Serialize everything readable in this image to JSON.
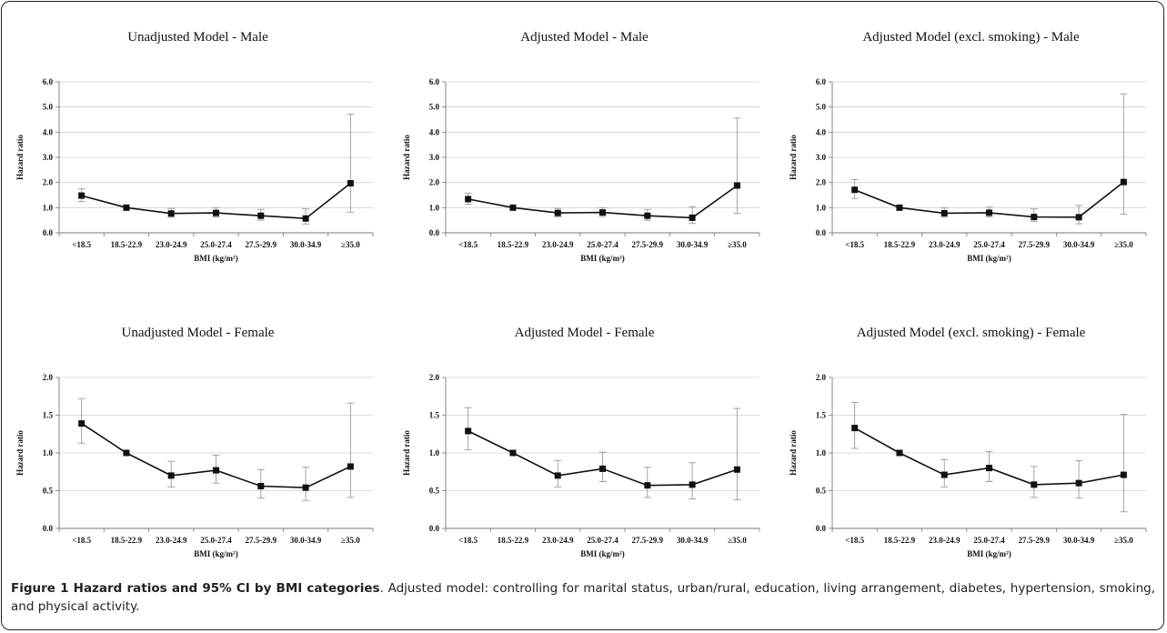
{
  "chart_data": [
    {
      "type": "line",
      "title": "Unadjusted Model - Male",
      "xlabel": "BMI (kg/m²)",
      "ylabel": "Hazard ratio",
      "categories": [
        "<18.5",
        "18.5-22.9",
        "23.0-24.9",
        "25.0-27.4",
        "27.5-29.9",
        "30.0-34.9",
        "≥35.0"
      ],
      "yticks": [
        "0.0",
        "1.0",
        "2.0",
        "3.0",
        "4.0",
        "5.0",
        "6.0"
      ],
      "ylim": [
        0,
        6
      ],
      "grid": true,
      "series": [
        {
          "values": [
            1.48,
            1.0,
            0.77,
            0.79,
            0.68,
            0.57,
            1.97
          ],
          "ci_low": [
            1.25,
            1.0,
            0.62,
            0.63,
            0.5,
            0.35,
            0.82
          ],
          "ci_high": [
            1.75,
            1.0,
            0.97,
            0.99,
            0.93,
            0.95,
            4.72
          ]
        }
      ]
    },
    {
      "type": "line",
      "title": "Adjusted Model - Male",
      "xlabel": "BMI (kg/m²)",
      "ylabel": "Hazard ratio",
      "categories": [
        "<18.5",
        "18.5-22.9",
        "23.0-24.9",
        "25.0-27.4",
        "27.5-29.9",
        "30.0-34.9",
        "≥35.0"
      ],
      "yticks": [
        "0.0",
        "1.0",
        "2.0",
        "3.0",
        "4.0",
        "5.0",
        "6.0"
      ],
      "ylim": [
        0,
        6
      ],
      "grid": true,
      "series": [
        {
          "values": [
            1.34,
            1.0,
            0.79,
            0.81,
            0.68,
            0.6,
            1.88
          ],
          "ci_low": [
            1.13,
            1.0,
            0.64,
            0.65,
            0.5,
            0.37,
            0.78
          ],
          "ci_high": [
            1.58,
            1.0,
            0.97,
            0.99,
            0.93,
            1.04,
            4.56
          ]
        }
      ]
    },
    {
      "type": "line",
      "title": "Adjusted Model (excl. smoking) - Male",
      "xlabel": "BMI (kg/m²)",
      "ylabel": "Hazard ratio",
      "categories": [
        "<18.5",
        "18.5-22.9",
        "23.0-24.9",
        "25.0-27.4",
        "27.5-29.9",
        "30.0-34.9",
        "≥35.0"
      ],
      "yticks": [
        "0.0",
        "1.0",
        "2.0",
        "3.0",
        "4.0",
        "5.0",
        "6.0"
      ],
      "ylim": [
        0,
        6
      ],
      "grid": true,
      "series": [
        {
          "values": [
            1.71,
            1.0,
            0.78,
            0.8,
            0.63,
            0.62,
            2.02
          ],
          "ci_low": [
            1.37,
            1.0,
            0.62,
            0.63,
            0.46,
            0.36,
            0.74
          ],
          "ci_high": [
            2.12,
            1.0,
            0.99,
            1.02,
            0.95,
            1.09,
            5.52
          ]
        }
      ]
    },
    {
      "type": "line",
      "title": "Unadjusted Model - Female",
      "xlabel": "BMI (kg/m²)",
      "ylabel": "Hazard ratio",
      "categories": [
        "<18.5",
        "18.5-22.9",
        "23.0-24.9",
        "25.0-27.4",
        "27.5-29.9",
        "30.0-34.9",
        "≥35.0"
      ],
      "yticks": [
        "0.0",
        "0.5",
        "1.0",
        "1.5",
        "2.0"
      ],
      "ylim": [
        0,
        2
      ],
      "grid": true,
      "series": [
        {
          "values": [
            1.39,
            1.0,
            0.7,
            0.77,
            0.56,
            0.54,
            0.82
          ],
          "ci_low": [
            1.13,
            1.0,
            0.55,
            0.6,
            0.4,
            0.37,
            0.41
          ],
          "ci_high": [
            1.72,
            1.0,
            0.89,
            0.97,
            0.78,
            0.81,
            1.66
          ]
        }
      ]
    },
    {
      "type": "line",
      "title": "Adjusted Model - Female",
      "xlabel": "BMI (kg/m²)",
      "ylabel": "Hazard ratio",
      "categories": [
        "<18.5",
        "18.5-22.9",
        "23.0-24.9",
        "25.0-27.4",
        "27.5-29.9",
        "30.0-34.9",
        "≥35.0"
      ],
      "yticks": [
        "0.0",
        "0.5",
        "1.0",
        "1.5",
        "2.0"
      ],
      "ylim": [
        0,
        2
      ],
      "grid": true,
      "series": [
        {
          "values": [
            1.29,
            1.0,
            0.7,
            0.79,
            0.57,
            0.58,
            0.78
          ],
          "ci_low": [
            1.04,
            1.0,
            0.55,
            0.62,
            0.41,
            0.39,
            0.38
          ],
          "ci_high": [
            1.6,
            1.0,
            0.9,
            1.01,
            0.81,
            0.87,
            1.59
          ]
        }
      ]
    },
    {
      "type": "line",
      "title": "Adjusted Model (excl. smoking) - Female",
      "xlabel": "BMI (kg/m²)",
      "ylabel": "Hazard ratio",
      "categories": [
        "<18.5",
        "18.5-22.9",
        "23.0-24.9",
        "25.0-27.4",
        "27.5-29.9",
        "30.0-34.9",
        "≥35.0"
      ],
      "yticks": [
        "0.0",
        "0.5",
        "1.0",
        "1.5",
        "2.0"
      ],
      "ylim": [
        0,
        2
      ],
      "grid": true,
      "series": [
        {
          "values": [
            1.33,
            1.0,
            0.71,
            0.8,
            0.58,
            0.6,
            0.71
          ],
          "ci_low": [
            1.06,
            1.0,
            0.55,
            0.62,
            0.41,
            0.4,
            0.22
          ],
          "ci_high": [
            1.67,
            1.0,
            0.91,
            1.02,
            0.82,
            0.9,
            1.51
          ]
        }
      ]
    }
  ],
  "caption": {
    "lead": "Figure 1 Hazard ratios and 95% CI by BMI categories",
    "body": ". Adjusted model: controlling for marital status, urban/rural, education, living arrangement, diabetes, hypertension, smoking, and physical activity."
  }
}
